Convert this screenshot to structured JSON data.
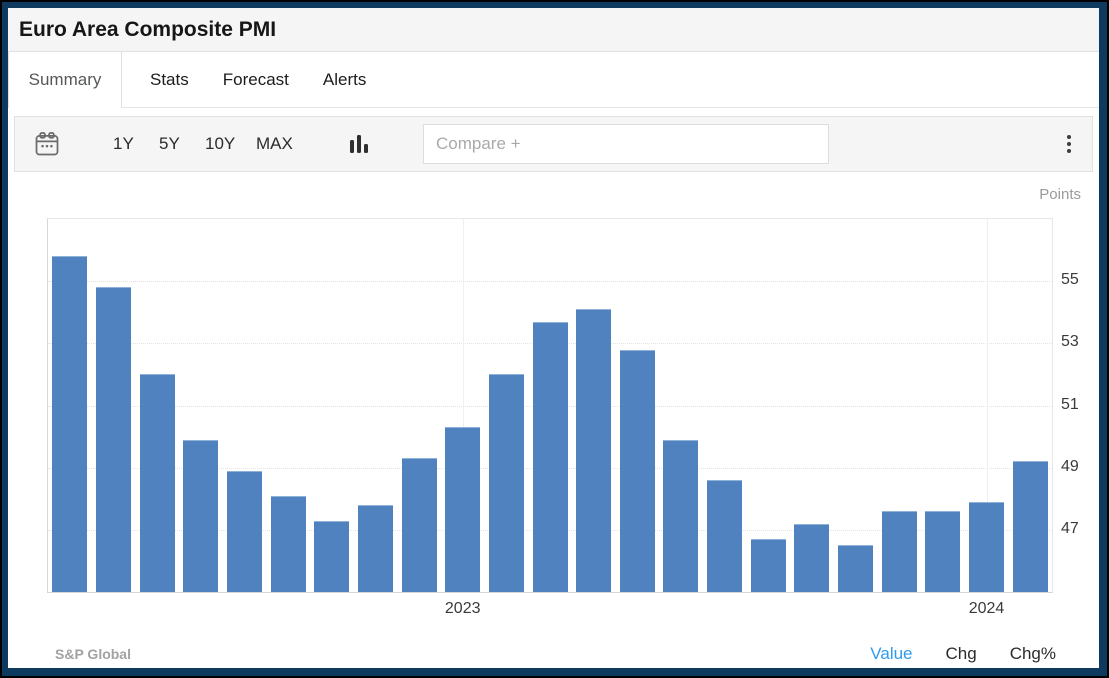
{
  "header": {
    "title": "Euro Area Composite PMI"
  },
  "tabs": [
    {
      "label": "Summary",
      "active": true
    },
    {
      "label": "Stats",
      "active": false
    },
    {
      "label": "Forecast",
      "active": false
    },
    {
      "label": "Alerts",
      "active": false
    }
  ],
  "toolbar": {
    "ranges": [
      "1Y",
      "5Y",
      "10Y",
      "MAX"
    ],
    "compare_placeholder": "Compare +"
  },
  "chart": {
    "unit_label": "Points"
  },
  "chart_data": {
    "type": "bar",
    "title": "Euro Area Composite PMI",
    "ylabel": "Points",
    "bar_color": "#4f82be",
    "ylim": [
      45,
      57
    ],
    "yticks": [
      47,
      49,
      51,
      53,
      55
    ],
    "grid": true,
    "legend": "none",
    "categories": [
      "2022-04",
      "2022-05",
      "2022-06",
      "2022-07",
      "2022-08",
      "2022-09",
      "2022-10",
      "2022-11",
      "2022-12",
      "2023-01",
      "2023-02",
      "2023-03",
      "2023-04",
      "2023-05",
      "2023-06",
      "2023-07",
      "2023-08",
      "2023-09",
      "2023-10",
      "2023-11",
      "2023-12",
      "2024-01",
      "2024-02"
    ],
    "values": [
      55.8,
      54.8,
      52.0,
      49.9,
      48.9,
      48.1,
      47.3,
      47.8,
      49.3,
      50.3,
      52.0,
      53.7,
      54.1,
      52.8,
      49.9,
      48.6,
      46.7,
      47.2,
      46.5,
      47.6,
      47.6,
      47.9,
      49.2
    ],
    "year_ticks": [
      {
        "label": "2023",
        "index": 9
      },
      {
        "label": "2024",
        "index": 21
      }
    ]
  },
  "footer": {
    "source": "S&P Global",
    "links": [
      {
        "label": "Value",
        "active": true
      },
      {
        "label": "Chg",
        "active": false
      },
      {
        "label": "Chg%",
        "active": false
      }
    ]
  }
}
